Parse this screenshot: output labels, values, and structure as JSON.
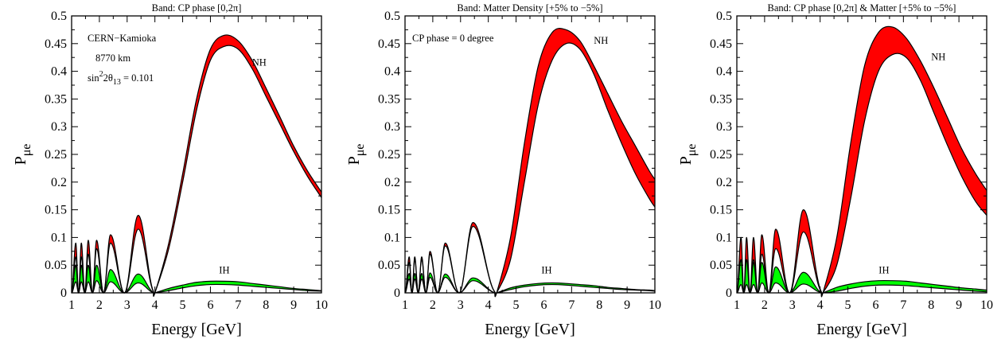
{
  "colors": {
    "nh_band": "#ff0000",
    "ih_band": "#00ff00",
    "line": "#000000"
  },
  "chart_data": [
    {
      "type": "area",
      "title": "Band: CP phase [0,2π]",
      "xlabel": "Energy [GeV]",
      "ylabel_main": "P",
      "ylabel_sub": "μe",
      "xlim": [
        1,
        10
      ],
      "ylim": [
        0,
        0.5
      ],
      "xticks": [
        1,
        2,
        3,
        4,
        5,
        6,
        7,
        8,
        9,
        10
      ],
      "yticks": [
        0,
        0.05,
        0.1,
        0.15,
        0.2,
        0.25,
        0.3,
        0.35,
        0.4,
        0.45,
        0.5
      ],
      "annotation_lines": [
        "CERN−Kamioka",
        "8770 km"
      ],
      "annotation_theta_prefix": "sin",
      "annotation_theta_sup": "2",
      "annotation_theta_mid": "2θ",
      "annotation_theta_sub": "13",
      "annotation_theta_value": " = 0.101",
      "series": [
        {
          "name": "NH",
          "x": [
            4.0,
            4.5,
            5.0,
            5.5,
            6.0,
            6.5,
            7.0,
            7.5,
            8.0,
            8.5,
            9.0,
            9.5,
            10.0
          ],
          "lower": [
            0.0,
            0.08,
            0.2,
            0.33,
            0.42,
            0.445,
            0.44,
            0.405,
            0.355,
            0.305,
            0.255,
            0.21,
            0.172
          ],
          "upper": [
            0.0,
            0.09,
            0.215,
            0.35,
            0.44,
            0.465,
            0.455,
            0.42,
            0.37,
            0.318,
            0.265,
            0.22,
            0.182
          ],
          "osc_peaks_lower": [
            [
              1.15,
              0.065
            ],
            [
              1.35,
              0.065
            ],
            [
              1.6,
              0.07
            ],
            [
              1.9,
              0.08
            ],
            [
              2.4,
              0.09
            ],
            [
              3.4,
              0.115
            ]
          ],
          "osc_peaks_upper": [
            [
              1.15,
              0.09
            ],
            [
              1.35,
              0.09
            ],
            [
              1.6,
              0.095
            ],
            [
              1.9,
              0.095
            ],
            [
              2.4,
              0.105
            ],
            [
              3.4,
              0.14
            ]
          ]
        },
        {
          "name": "IH",
          "x": [
            4.0,
            4.5,
            5.0,
            5.5,
            6.0,
            6.5,
            7.0,
            7.5,
            8.0,
            8.5,
            9.0,
            9.5,
            10.0
          ],
          "lower": [
            0.0,
            0.004,
            0.009,
            0.013,
            0.015,
            0.015,
            0.014,
            0.012,
            0.01,
            0.008,
            0.006,
            0.004,
            0.003
          ],
          "upper": [
            0.0,
            0.008,
            0.014,
            0.019,
            0.021,
            0.021,
            0.02,
            0.017,
            0.014,
            0.011,
            0.008,
            0.006,
            0.004
          ],
          "osc_peaks_lower": [
            [
              1.15,
              0.02
            ],
            [
              1.35,
              0.02
            ],
            [
              1.6,
              0.02
            ],
            [
              1.9,
              0.022
            ],
            [
              2.4,
              0.02
            ],
            [
              3.4,
              0.018
            ]
          ],
          "osc_peaks_upper": [
            [
              1.15,
              0.05
            ],
            [
              1.35,
              0.05
            ],
            [
              1.6,
              0.05
            ],
            [
              1.9,
              0.05
            ],
            [
              2.4,
              0.042
            ],
            [
              3.4,
              0.034
            ]
          ]
        }
      ],
      "nh_label": "NH",
      "ih_label": "IH"
    },
    {
      "type": "area",
      "title": "Band: Matter Density [+5% to −5%]",
      "xlabel": "Energy [GeV]",
      "ylabel_main": "P",
      "ylabel_sub": "μe",
      "xlim": [
        1,
        10
      ],
      "ylim": [
        0,
        0.5
      ],
      "xticks": [
        1,
        2,
        3,
        4,
        5,
        6,
        7,
        8,
        9,
        10
      ],
      "yticks": [
        0,
        0.05,
        0.1,
        0.15,
        0.2,
        0.25,
        0.3,
        0.35,
        0.4,
        0.45,
        0.5
      ],
      "annotation_lines": [
        "CP phase = 0 degree"
      ],
      "series": [
        {
          "name": "NH",
          "x": [
            4.3,
            4.8,
            5.3,
            5.8,
            6.3,
            6.8,
            7.3,
            7.8,
            8.3,
            8.8,
            9.3,
            9.8,
            10.0
          ],
          "lower": [
            0.0,
            0.06,
            0.2,
            0.34,
            0.42,
            0.45,
            0.44,
            0.395,
            0.33,
            0.27,
            0.215,
            0.17,
            0.155
          ],
          "upper": [
            0.0,
            0.1,
            0.27,
            0.41,
            0.47,
            0.475,
            0.455,
            0.41,
            0.36,
            0.31,
            0.265,
            0.22,
            0.205
          ],
          "osc_peaks_lower": [
            [
              1.15,
              0.055
            ],
            [
              1.35,
              0.06
            ],
            [
              1.6,
              0.06
            ],
            [
              1.9,
              0.07
            ],
            [
              2.45,
              0.085
            ],
            [
              3.45,
              0.12
            ]
          ],
          "osc_peaks_upper": [
            [
              1.15,
              0.065
            ],
            [
              1.35,
              0.065
            ],
            [
              1.6,
              0.065
            ],
            [
              1.9,
              0.075
            ],
            [
              2.45,
              0.09
            ],
            [
              3.45,
              0.127
            ]
          ]
        },
        {
          "name": "IH",
          "x": [
            4.3,
            4.8,
            5.3,
            5.8,
            6.3,
            6.8,
            7.3,
            7.8,
            8.3,
            8.8,
            9.3,
            9.8,
            10.0
          ],
          "lower": [
            0.0,
            0.006,
            0.011,
            0.014,
            0.015,
            0.014,
            0.012,
            0.01,
            0.008,
            0.006,
            0.005,
            0.004,
            0.003
          ],
          "upper": [
            0.0,
            0.009,
            0.014,
            0.017,
            0.018,
            0.017,
            0.015,
            0.013,
            0.01,
            0.008,
            0.006,
            0.005,
            0.004
          ],
          "osc_peaks_lower": [
            [
              1.15,
              0.025
            ],
            [
              1.35,
              0.025
            ],
            [
              1.6,
              0.025
            ],
            [
              1.9,
              0.028
            ],
            [
              2.45,
              0.028
            ],
            [
              3.45,
              0.022
            ]
          ],
          "osc_peaks_upper": [
            [
              1.15,
              0.035
            ],
            [
              1.35,
              0.035
            ],
            [
              1.6,
              0.035
            ],
            [
              1.9,
              0.036
            ],
            [
              2.45,
              0.034
            ],
            [
              3.45,
              0.027
            ]
          ]
        }
      ],
      "nh_label": "NH",
      "ih_label": "IH"
    },
    {
      "type": "area",
      "title": "Band: CP phase [0,2π] & Matter [+5% to −5%]",
      "xlabel": "Energy [GeV]",
      "ylabel_main": "P",
      "ylabel_sub": "μe",
      "xlim": [
        1,
        10
      ],
      "ylim": [
        0,
        0.5
      ],
      "xticks": [
        1,
        2,
        3,
        4,
        5,
        6,
        7,
        8,
        9,
        10
      ],
      "yticks": [
        0,
        0.05,
        0.1,
        0.15,
        0.2,
        0.25,
        0.3,
        0.35,
        0.4,
        0.45,
        0.5
      ],
      "series": [
        {
          "name": "NH",
          "x": [
            4.1,
            4.6,
            5.1,
            5.6,
            6.1,
            6.6,
            7.1,
            7.6,
            8.1,
            8.6,
            9.1,
            9.6,
            10.0
          ],
          "lower": [
            0.0,
            0.05,
            0.17,
            0.31,
            0.4,
            0.43,
            0.425,
            0.385,
            0.325,
            0.265,
            0.21,
            0.165,
            0.14
          ],
          "upper": [
            0.0,
            0.1,
            0.27,
            0.41,
            0.47,
            0.48,
            0.46,
            0.42,
            0.37,
            0.315,
            0.26,
            0.215,
            0.185
          ],
          "osc_peaks_lower": [
            [
              1.15,
              0.06
            ],
            [
              1.35,
              0.06
            ],
            [
              1.6,
              0.06
            ],
            [
              1.9,
              0.07
            ],
            [
              2.4,
              0.08
            ],
            [
              3.4,
              0.11
            ]
          ],
          "osc_peaks_upper": [
            [
              1.15,
              0.1
            ],
            [
              1.35,
              0.1
            ],
            [
              1.6,
              0.1
            ],
            [
              1.9,
              0.105
            ],
            [
              2.4,
              0.115
            ],
            [
              3.4,
              0.15
            ]
          ]
        },
        {
          "name": "IH",
          "x": [
            4.1,
            4.6,
            5.1,
            5.6,
            6.1,
            6.6,
            7.1,
            7.6,
            8.1,
            8.6,
            9.1,
            9.6,
            10.0
          ],
          "lower": [
            0.0,
            0.003,
            0.008,
            0.012,
            0.014,
            0.014,
            0.013,
            0.011,
            0.009,
            0.007,
            0.005,
            0.003,
            0.002
          ],
          "upper": [
            0.0,
            0.01,
            0.016,
            0.02,
            0.022,
            0.022,
            0.021,
            0.018,
            0.015,
            0.012,
            0.009,
            0.007,
            0.005
          ],
          "osc_peaks_lower": [
            [
              1.15,
              0.015
            ],
            [
              1.35,
              0.015
            ],
            [
              1.6,
              0.015
            ],
            [
              1.9,
              0.018
            ],
            [
              2.4,
              0.018
            ],
            [
              3.4,
              0.016
            ]
          ],
          "osc_peaks_upper": [
            [
              1.15,
              0.06
            ],
            [
              1.35,
              0.06
            ],
            [
              1.6,
              0.055
            ],
            [
              1.9,
              0.055
            ],
            [
              2.4,
              0.047
            ],
            [
              3.4,
              0.037
            ]
          ]
        }
      ],
      "nh_label": "NH",
      "ih_label": "IH"
    }
  ]
}
